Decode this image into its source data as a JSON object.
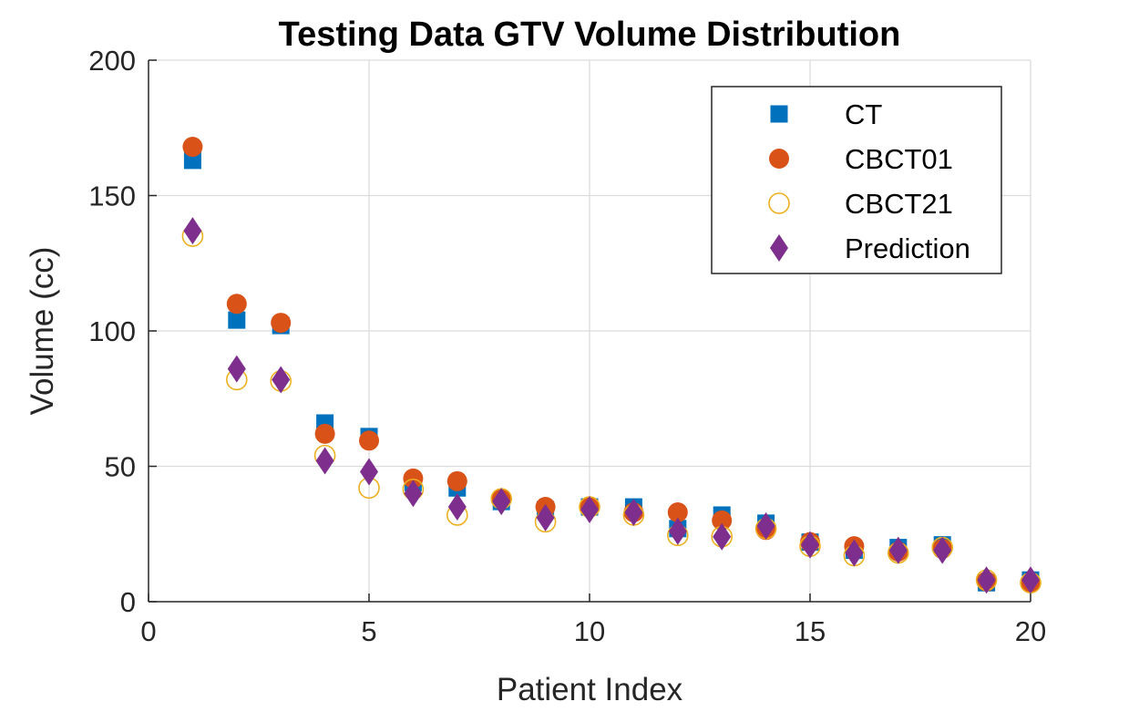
{
  "chart_data": {
    "type": "scatter",
    "title": "Testing Data GTV Volume Distribution",
    "xlabel": "Patient Index",
    "ylabel": "Volume (cc)",
    "xlim": [
      0,
      20
    ],
    "ylim": [
      0,
      200
    ],
    "xticks": [
      0,
      5,
      10,
      15,
      20
    ],
    "yticks": [
      0,
      50,
      100,
      150,
      200
    ],
    "grid": true,
    "legend_position": "top-right",
    "x": [
      1,
      2,
      3,
      4,
      5,
      6,
      7,
      8,
      9,
      10,
      11,
      12,
      13,
      14,
      15,
      16,
      17,
      18,
      19,
      20
    ],
    "series": [
      {
        "name": "CT",
        "marker": "square",
        "color": "#0072BD",
        "filled": true,
        "values": [
          163,
          104,
          102,
          66,
          61,
          44,
          42,
          37,
          34,
          35,
          35,
          27,
          32,
          29,
          22,
          19,
          20,
          21,
          7,
          8
        ]
      },
      {
        "name": "CBCT01",
        "marker": "circle",
        "color": "#D95319",
        "filled": true,
        "values": [
          168,
          110,
          103,
          62,
          59.5,
          45.5,
          44.5,
          38,
          35,
          35,
          33,
          33,
          30,
          26.5,
          22,
          20.5,
          18.5,
          19.5,
          7.5,
          7
        ]
      },
      {
        "name": "CBCT21",
        "marker": "circle",
        "color": "#EDB120",
        "filled": false,
        "values": [
          135,
          82,
          81.5,
          54,
          42,
          41.5,
          32,
          38,
          29.5,
          35,
          32,
          24.5,
          24,
          27,
          20.5,
          17,
          18,
          20,
          8,
          7
        ]
      },
      {
        "name": "Prediction",
        "marker": "diamond",
        "color": "#7E2F8E",
        "filled": true,
        "values": [
          137,
          86,
          82,
          52,
          48,
          40,
          35,
          37,
          31,
          34,
          33,
          26,
          24,
          28,
          21,
          18,
          19,
          19,
          8,
          8
        ]
      }
    ]
  }
}
